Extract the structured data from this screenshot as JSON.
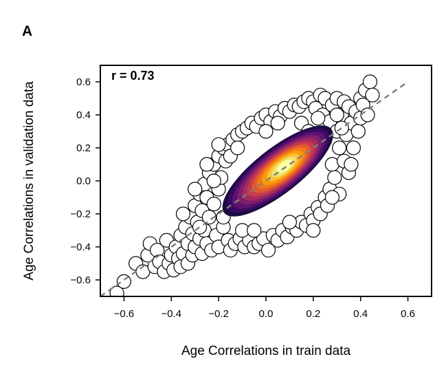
{
  "chart_data": {
    "type": "scatter",
    "panel_label": "A",
    "xlabel": "Age Correlations in train data",
    "ylabel": "Age Correlations in validation data",
    "xlim": [
      -0.7,
      0.7
    ],
    "ylim": [
      -0.7,
      0.7
    ],
    "xticks": [
      -0.6,
      -0.4,
      -0.2,
      0.0,
      0.2,
      0.4,
      0.6
    ],
    "yticks": [
      -0.6,
      -0.4,
      -0.2,
      0.0,
      0.2,
      0.4,
      0.6
    ],
    "xtick_labels": [
      "−0.6",
      "−0.4",
      "−0.2",
      "0.0",
      "0.2",
      "0.4",
      "0.6"
    ],
    "ytick_labels": [
      "−0.6",
      "−0.4",
      "−0.2",
      "0.0",
      "0.2",
      "0.4",
      "0.6"
    ],
    "annotation": "r = 0.73",
    "correlation": 0.73,
    "identity_line": {
      "style": "dashed",
      "color": "#808080",
      "from": [
        -0.7,
        -0.7
      ],
      "to": [
        0.6,
        0.6
      ]
    },
    "marker": {
      "shape": "circle",
      "fill": "#ffffff",
      "edge": "#000000"
    },
    "grid": false,
    "legend": "none",
    "density_overlay": {
      "type": "kde-contours",
      "colormap": "inferno",
      "levels": [
        "#1b0c41",
        "#3a0963",
        "#5c126e",
        "#7e1e6c",
        "#a22b62",
        "#c43c4e",
        "#e1592f",
        "#f37819",
        "#fb9b06",
        "#f7c33a",
        "#f1e36a",
        "#fcffa4"
      ]
    },
    "points": [
      [
        -0.63,
        -0.68
      ],
      [
        -0.6,
        -0.61
      ],
      [
        -0.55,
        -0.5
      ],
      [
        -0.52,
        -0.55
      ],
      [
        -0.5,
        -0.45
      ],
      [
        -0.49,
        -0.38
      ],
      [
        -0.47,
        -0.52
      ],
      [
        -0.46,
        -0.42
      ],
      [
        -0.45,
        -0.49
      ],
      [
        -0.43,
        -0.55
      ],
      [
        -0.42,
        -0.36
      ],
      [
        -0.41,
        -0.5
      ],
      [
        -0.4,
        -0.45
      ],
      [
        -0.39,
        -0.54
      ],
      [
        -0.38,
        -0.4
      ],
      [
        -0.37,
        -0.47
      ],
      [
        -0.36,
        -0.33
      ],
      [
        -0.36,
        -0.52
      ],
      [
        -0.35,
        -0.44
      ],
      [
        -0.34,
        -0.28
      ],
      [
        -0.33,
        -0.5
      ],
      [
        -0.33,
        -0.38
      ],
      [
        -0.32,
        -0.22
      ],
      [
        -0.31,
        -0.45
      ],
      [
        -0.31,
        -0.32
      ],
      [
        -0.3,
        -0.15
      ],
      [
        -0.3,
        -0.4
      ],
      [
        -0.29,
        -0.25
      ],
      [
        -0.28,
        -0.08
      ],
      [
        -0.28,
        -0.35
      ],
      [
        -0.27,
        -0.18
      ],
      [
        -0.27,
        -0.44
      ],
      [
        -0.26,
        -0.02
      ],
      [
        -0.26,
        -0.3
      ],
      [
        -0.25,
        -0.1
      ],
      [
        -0.25,
        -0.38
      ],
      [
        -0.24,
        0.05
      ],
      [
        -0.24,
        -0.22
      ],
      [
        -0.23,
        -0.42
      ],
      [
        -0.22,
        0.1
      ],
      [
        -0.22,
        -0.14
      ],
      [
        -0.21,
        -0.33
      ],
      [
        -0.2,
        0.15
      ],
      [
        -0.2,
        -0.05
      ],
      [
        -0.2,
        -0.4
      ],
      [
        -0.19,
        0.02
      ],
      [
        -0.18,
        0.2
      ],
      [
        -0.18,
        -0.28
      ],
      [
        -0.17,
        0.12
      ],
      [
        -0.16,
        -0.36
      ],
      [
        -0.16,
        0.22
      ],
      [
        -0.15,
        -0.42
      ],
      [
        -0.14,
        0.25
      ],
      [
        -0.13,
        -0.38
      ],
      [
        -0.12,
        0.28
      ],
      [
        -0.11,
        -0.35
      ],
      [
        -0.1,
        0.3
      ],
      [
        -0.09,
        -0.4
      ],
      [
        -0.08,
        0.32
      ],
      [
        -0.07,
        -0.36
      ],
      [
        -0.06,
        0.35
      ],
      [
        -0.05,
        -0.4
      ],
      [
        -0.04,
        0.33
      ],
      [
        -0.03,
        -0.38
      ],
      [
        -0.02,
        0.38
      ],
      [
        -0.01,
        -0.35
      ],
      [
        0.0,
        0.4
      ],
      [
        0.01,
        -0.42
      ],
      [
        0.02,
        0.36
      ],
      [
        0.03,
        -0.33
      ],
      [
        0.04,
        0.42
      ],
      [
        0.05,
        -0.36
      ],
      [
        0.06,
        0.39
      ],
      [
        0.07,
        -0.3
      ],
      [
        0.08,
        0.44
      ],
      [
        0.09,
        -0.34
      ],
      [
        0.1,
        0.42
      ],
      [
        0.11,
        -0.28
      ],
      [
        0.12,
        0.46
      ],
      [
        0.13,
        -0.3
      ],
      [
        0.14,
        0.45
      ],
      [
        0.15,
        -0.25
      ],
      [
        0.16,
        0.48
      ],
      [
        0.17,
        -0.27
      ],
      [
        0.18,
        0.5
      ],
      [
        0.19,
        -0.2
      ],
      [
        0.2,
        0.48
      ],
      [
        0.2,
        -0.24
      ],
      [
        0.21,
        0.44
      ],
      [
        0.22,
        -0.16
      ],
      [
        0.23,
        0.52
      ],
      [
        0.23,
        -0.2
      ],
      [
        0.24,
        0.4
      ],
      [
        0.25,
        -0.1
      ],
      [
        0.25,
        0.5
      ],
      [
        0.26,
        -0.15
      ],
      [
        0.27,
        0.36
      ],
      [
        0.27,
        -0.05
      ],
      [
        0.28,
        0.46
      ],
      [
        0.28,
        0.1
      ],
      [
        0.29,
        0.02
      ],
      [
        0.3,
        0.3
      ],
      [
        0.3,
        0.5
      ],
      [
        0.31,
        0.2
      ],
      [
        0.31,
        -0.08
      ],
      [
        0.32,
        0.4
      ],
      [
        0.33,
        0.12
      ],
      [
        0.33,
        0.48
      ],
      [
        0.34,
        0.28
      ],
      [
        0.35,
        0.05
      ],
      [
        0.35,
        0.45
      ],
      [
        0.36,
        0.35
      ],
      [
        0.37,
        0.2
      ],
      [
        0.38,
        0.42
      ],
      [
        0.39,
        0.3
      ],
      [
        0.4,
        0.5
      ],
      [
        0.4,
        0.38
      ],
      [
        0.41,
        0.46
      ],
      [
        0.42,
        0.55
      ],
      [
        0.43,
        0.4
      ],
      [
        0.44,
        0.6
      ],
      [
        0.45,
        0.52
      ],
      [
        -0.35,
        -0.2
      ],
      [
        -0.3,
        -0.05
      ],
      [
        -0.25,
        0.1
      ],
      [
        -0.2,
        0.22
      ],
      [
        0.25,
        0.25
      ],
      [
        0.3,
        0.4
      ],
      [
        0.2,
        -0.3
      ],
      [
        -0.1,
        -0.3
      ],
      [
        -0.15,
        0.15
      ],
      [
        0.05,
        0.35
      ],
      [
        0.15,
        0.35
      ],
      [
        -0.05,
        -0.3
      ],
      [
        0.1,
        -0.25
      ],
      [
        0.32,
        0.32
      ],
      [
        0.22,
        0.38
      ],
      [
        -0.28,
        -0.28
      ],
      [
        -0.18,
        -0.22
      ],
      [
        0.28,
        -0.1
      ],
      [
        0.36,
        0.1
      ],
      [
        -0.22,
        0.0
      ],
      [
        -0.12,
        0.2
      ],
      [
        0.0,
        0.3
      ],
      [
        0.18,
        0.3
      ]
    ]
  }
}
